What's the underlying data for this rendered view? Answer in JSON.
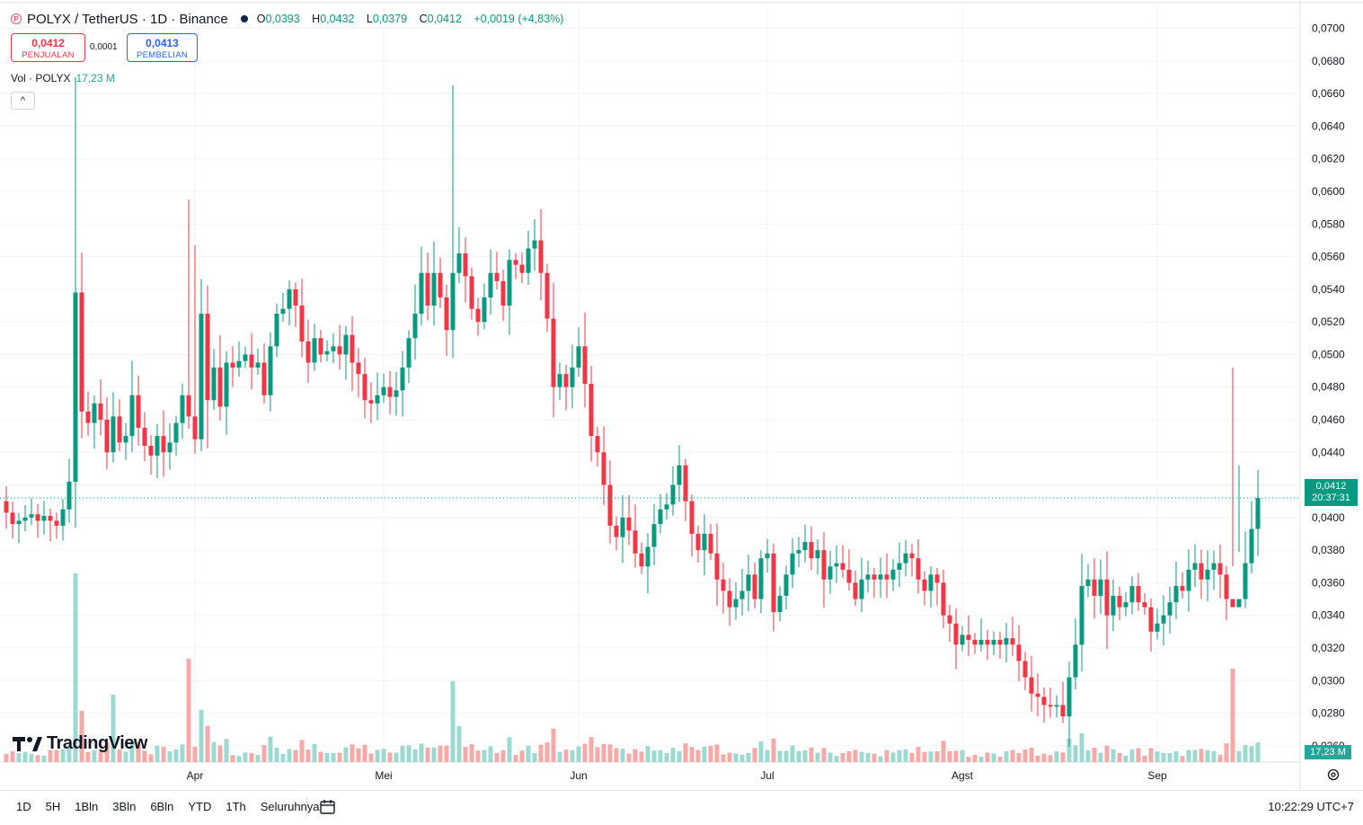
{
  "header": {
    "symbol_title": "POLYX / TetherUS · 1D · Binance",
    "open_label": "O",
    "open": "0,0393",
    "high_label": "H",
    "high": "0,0432",
    "low_label": "L",
    "low": "0,0379",
    "close_label": "C",
    "close": "0,0412",
    "change": "+0,0019 (+4,83%)"
  },
  "trade": {
    "sell_price": "0,0412",
    "sell_label": "PENJUALAN",
    "spread": "0,0001",
    "buy_price": "0,0413",
    "buy_label": "PEMBELIAN"
  },
  "volume_legend": {
    "label": "Vol · POLYX",
    "value": "17,23 M"
  },
  "brand": "TradingView",
  "last_price": {
    "value": "0,0412",
    "countdown": "20:37:31"
  },
  "volume_badge": "17,23 M",
  "bottom_bar": {
    "ranges": [
      "1D",
      "5H",
      "1Bln",
      "3Bln",
      "6Bln",
      "YTD",
      "1Th",
      "Seluruhnya"
    ],
    "clock": "10:22:29 UTC+7"
  },
  "colors": {
    "up": "#089981",
    "down": "#f23645",
    "vol_up": "#9cd9d1",
    "vol_down": "#f7a9a7"
  },
  "chart_data": {
    "type": "candlestick",
    "y_ticks": [
      "0,0260",
      "0,0280",
      "0,0300",
      "0,0320",
      "0,0340",
      "0,0360",
      "0,0380",
      "0,0400",
      "0,0420",
      "0,0440",
      "0,0460",
      "0,0480",
      "0,0500",
      "0,0520",
      "0,0540",
      "0,0560",
      "0,0580",
      "0,0600",
      "0,0620",
      "0,0640",
      "0,0660",
      "0,0680",
      "0,0700"
    ],
    "ylim": [
      0.025,
      0.0713
    ],
    "x_labels": [
      {
        "label": "Apr",
        "index": 30
      },
      {
        "label": "Mei",
        "index": 60
      },
      {
        "label": "Jun",
        "index": 91
      },
      {
        "label": "Jul",
        "index": 121
      },
      {
        "label": "Agst",
        "index": 152
      },
      {
        "label": "Sep",
        "index": 183
      }
    ],
    "closes": [
      0.0403,
      0.0396,
      0.0398,
      0.04,
      0.0402,
      0.0398,
      0.0401,
      0.0398,
      0.0395,
      0.0405,
      0.0422,
      0.0538,
      0.0465,
      0.0458,
      0.047,
      0.046,
      0.044,
      0.0462,
      0.0446,
      0.045,
      0.0475,
      0.0455,
      0.0444,
      0.0438,
      0.045,
      0.044,
      0.0446,
      0.0458,
      0.0475,
      0.0462,
      0.0448,
      0.0525,
      0.0472,
      0.0492,
      0.0468,
      0.0495,
      0.0492,
      0.0496,
      0.05,
      0.0492,
      0.0495,
      0.0475,
      0.0505,
      0.0525,
      0.0528,
      0.054,
      0.053,
      0.0508,
      0.0495,
      0.051,
      0.05,
      0.0502,
      0.0505,
      0.05,
      0.0512,
      0.0495,
      0.0488,
      0.0472,
      0.047,
      0.0475,
      0.048,
      0.0474,
      0.0478,
      0.0492,
      0.051,
      0.0525,
      0.055,
      0.053,
      0.055,
      0.0535,
      0.0515,
      0.055,
      0.0562,
      0.0548,
      0.0528,
      0.052,
      0.0535,
      0.055,
      0.0545,
      0.053,
      0.0558,
      0.0555,
      0.055,
      0.0565,
      0.057,
      0.055,
      0.0522,
      0.048,
      0.0488,
      0.048,
      0.0492,
      0.0505,
      0.0482,
      0.045,
      0.044,
      0.042,
      0.0395,
      0.0388,
      0.04,
      0.0392,
      0.0378,
      0.037,
      0.0382,
      0.0396,
      0.0405,
      0.0408,
      0.042,
      0.0432,
      0.041,
      0.039,
      0.038,
      0.039,
      0.0378,
      0.0362,
      0.0355,
      0.0345,
      0.035,
      0.0355,
      0.0365,
      0.035,
      0.0375,
      0.0378,
      0.0342,
      0.0352,
      0.0365,
      0.0378,
      0.038,
      0.0385,
      0.0375,
      0.038,
      0.0362,
      0.037,
      0.0372,
      0.0368,
      0.036,
      0.035,
      0.0362,
      0.0365,
      0.0362,
      0.0365,
      0.0362,
      0.0368,
      0.0372,
      0.0378,
      0.0375,
      0.0362,
      0.0355,
      0.0365,
      0.036,
      0.034,
      0.0335,
      0.0322,
      0.0328,
      0.0325,
      0.0322,
      0.0325,
      0.0322,
      0.0325,
      0.0322,
      0.0326,
      0.0322,
      0.0312,
      0.0302,
      0.0292,
      0.029,
      0.0285,
      0.0284,
      0.0285,
      0.0278,
      0.0302,
      0.0322,
      0.0358,
      0.0362,
      0.0352,
      0.0362,
      0.034,
      0.0352,
      0.0345,
      0.0348,
      0.0358,
      0.0348,
      0.0345,
      0.033,
      0.0335,
      0.034,
      0.0348,
      0.0358,
      0.0355,
      0.0368,
      0.0372,
      0.0362,
      0.0368,
      0.0372,
      0.0365,
      0.035,
      0.0345,
      0.035,
      0.0372,
      0.0393,
      0.0412
    ],
    "volume_peak_value": "17,23 M"
  }
}
